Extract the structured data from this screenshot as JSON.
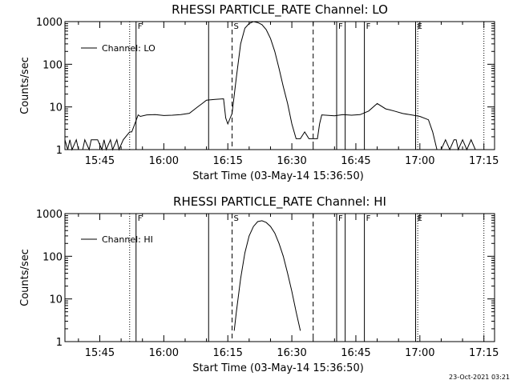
{
  "timestamp": "23-Oct-2021 03:21",
  "chart_data": [
    {
      "type": "line",
      "title": "RHESSI PARTICLE_RATE Channel: LO",
      "xlabel": "Start Time (03-May-14 15:36:50)",
      "ylabel": "Counts/sec",
      "y_scale": "log",
      "xlim": [
        "15:36:50",
        "17:17:30"
      ],
      "ylim": [
        1,
        1000
      ],
      "x_ticks": [
        "15:45",
        "16:00",
        "16:15",
        "16:30",
        "16:45",
        "17:00",
        "17:15"
      ],
      "y_ticks": [
        "1",
        "10",
        "100",
        "1000"
      ],
      "legend": {
        "position": "top-left",
        "entries": [
          "Channel: LO"
        ]
      },
      "markers": [
        {
          "time": "15:52:00",
          "style": "dotted",
          "label": ""
        },
        {
          "time": "15:53:30",
          "style": "solid",
          "label": "F"
        },
        {
          "time": "16:10:30",
          "style": "solid",
          "label": ""
        },
        {
          "time": "16:16:00",
          "style": "dashed",
          "label": "S"
        },
        {
          "time": "16:35:00",
          "style": "dashed",
          "label": ""
        },
        {
          "time": "16:40:30",
          "style": "solid",
          "label": "F"
        },
        {
          "time": "16:42:30",
          "style": "solid",
          "label": ""
        },
        {
          "time": "16:47:00",
          "style": "solid",
          "label": "F"
        },
        {
          "time": "16:59:00",
          "style": "solid",
          "label": "E"
        },
        {
          "time": "16:59:30",
          "style": "dotted",
          "label": ""
        },
        {
          "time": "17:15:00",
          "style": "dotted",
          "label": ""
        }
      ],
      "series": [
        {
          "name": "Channel: LO",
          "x": [
            "15:36:50",
            "15:37:30",
            "15:38:00",
            "15:38:30",
            "15:39:30",
            "15:40:00",
            "15:41:00",
            "15:41:30",
            "15:42:30",
            "15:43:00",
            "15:44:30",
            "15:45:30",
            "15:46:00",
            "15:46:30",
            "15:47:30",
            "15:48:00",
            "15:49:00",
            "15:49:30",
            "15:50:30",
            "15:52:00",
            "15:52:30",
            "15:54:00",
            "15:54:30",
            "15:56:00",
            "15:58:00",
            "16:00:00",
            "16:02:00",
            "16:04:00",
            "16:06:00",
            "16:08:00",
            "16:09:00",
            "16:10:00",
            "16:12:00",
            "16:14:00",
            "16:14:30",
            "16:15:00",
            "16:16:00",
            "16:17:00",
            "16:18:00",
            "16:19:00",
            "16:20:00",
            "16:21:00",
            "16:22:00",
            "16:23:00",
            "16:24:00",
            "16:25:00",
            "16:26:00",
            "16:27:00",
            "16:28:00",
            "16:29:00",
            "16:30:00",
            "16:31:00",
            "16:32:00",
            "16:33:00",
            "16:34:00",
            "16:35:00",
            "16:36:00",
            "16:36:30",
            "16:37:00",
            "16:40:00",
            "16:42:00",
            "16:44:00",
            "16:46:00",
            "16:48:00",
            "16:50:00",
            "16:52:00",
            "16:53:00",
            "16:54:00",
            "16:56:00",
            "16:58:00",
            "17:00:00",
            "17:02:00",
            "17:03:00",
            "17:04:00",
            "17:05:00",
            "17:06:00",
            "17:07:00",
            "17:08:00",
            "17:08:30",
            "17:09:00",
            "17:10:00",
            "17:11:00",
            "17:12:00",
            "17:13:00"
          ],
          "y": [
            1.7,
            1,
            1.7,
            1,
            1.7,
            1,
            1,
            1.7,
            1,
            1.7,
            1.7,
            1,
            1.7,
            1,
            1.7,
            1,
            1.7,
            1,
            1.7,
            2.6,
            2.6,
            6.5,
            6,
            6.5,
            6.6,
            6.3,
            6.4,
            6.6,
            7.1,
            10.1,
            12,
            14.4,
            15,
            15.5,
            5.5,
            4,
            7,
            50,
            300,
            700,
            900,
            1000,
            950,
            850,
            650,
            400,
            200,
            80,
            30,
            12,
            4,
            1.8,
            1.8,
            2.6,
            1.8,
            1.8,
            1.8,
            4,
            6.5,
            6.2,
            6.6,
            6.4,
            6.6,
            8,
            12,
            9,
            8.5,
            8,
            7,
            6.5,
            6,
            5,
            2.6,
            1,
            1,
            1.7,
            1,
            1.7,
            1.7,
            1,
            1.7,
            1,
            1.7,
            1
          ]
        }
      ]
    },
    {
      "type": "line",
      "title": "RHESSI PARTICLE_RATE Channel: HI",
      "xlabel": "Start Time (03-May-14 15:36:50)",
      "ylabel": "Counts/sec",
      "y_scale": "log",
      "xlim": [
        "15:36:50",
        "17:17:30"
      ],
      "ylim": [
        1,
        1000
      ],
      "x_ticks": [
        "15:45",
        "16:00",
        "16:15",
        "16:30",
        "16:45",
        "17:00",
        "17:15"
      ],
      "y_ticks": [
        "1",
        "10",
        "100",
        "1000"
      ],
      "legend": {
        "position": "top-left",
        "entries": [
          "Channel: HI"
        ]
      },
      "markers": [
        {
          "time": "15:52:00",
          "style": "dotted",
          "label": ""
        },
        {
          "time": "15:53:30",
          "style": "solid",
          "label": "F"
        },
        {
          "time": "16:10:30",
          "style": "solid",
          "label": ""
        },
        {
          "time": "16:16:00",
          "style": "dashed",
          "label": "S"
        },
        {
          "time": "16:35:00",
          "style": "dashed",
          "label": ""
        },
        {
          "time": "16:40:30",
          "style": "solid",
          "label": "F"
        },
        {
          "time": "16:42:30",
          "style": "solid",
          "label": ""
        },
        {
          "time": "16:47:00",
          "style": "solid",
          "label": "F"
        },
        {
          "time": "16:59:00",
          "style": "solid",
          "label": "E"
        },
        {
          "time": "16:59:30",
          "style": "dotted",
          "label": ""
        },
        {
          "time": "17:15:00",
          "style": "dotted",
          "label": ""
        }
      ],
      "series": [
        {
          "name": "Channel: HI",
          "x": [
            "16:16:30",
            "16:17:00",
            "16:18:00",
            "16:19:00",
            "16:20:00",
            "16:21:00",
            "16:22:00",
            "16:23:00",
            "16:24:00",
            "16:25:00",
            "16:26:00",
            "16:27:00",
            "16:28:00",
            "16:29:00",
            "16:30:00",
            "16:31:00",
            "16:32:00"
          ],
          "y": [
            1.8,
            5,
            30,
            120,
            300,
            500,
            650,
            680,
            620,
            500,
            350,
            200,
            100,
            40,
            15,
            5,
            1.8
          ]
        }
      ]
    }
  ]
}
